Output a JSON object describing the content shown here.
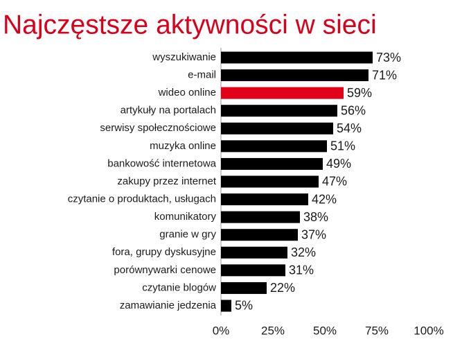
{
  "chart_data": {
    "type": "bar",
    "orientation": "horizontal",
    "title": "Najczęstsze aktywności w sieci",
    "categories": [
      "wyszukiwanie",
      "e-mail",
      "wideo online",
      "artykuły na portalach",
      "serwisy społecznościowe",
      "muzyka online",
      "bankowość internetowa",
      "zakupy przez internet",
      "czytanie o produktach, usługach",
      "komunikatory",
      "granie w gry",
      "fora, grupy dyskusyjne",
      "porównywarki cenowe",
      "czytanie blogów",
      "zamawianie jedzenia"
    ],
    "values": [
      73,
      71,
      59,
      56,
      54,
      51,
      49,
      47,
      42,
      38,
      37,
      32,
      31,
      22,
      5
    ],
    "value_labels": [
      "73%",
      "71%",
      "59%",
      "56%",
      "54%",
      "51%",
      "49%",
      "47%",
      "42%",
      "38%",
      "37%",
      "32%",
      "31%",
      "22%",
      "5%"
    ],
    "colors": [
      "#000000",
      "#000000",
      "#e2001a",
      "#000000",
      "#000000",
      "#000000",
      "#000000",
      "#000000",
      "#000000",
      "#000000",
      "#000000",
      "#000000",
      "#000000",
      "#000000",
      "#000000"
    ],
    "xlim": [
      0,
      100
    ],
    "xticks": [
      {
        "value": 0,
        "label": "0%"
      },
      {
        "value": 25,
        "label": "25%"
      },
      {
        "value": 50,
        "label": "50%"
      },
      {
        "value": 75,
        "label": "75%"
      },
      {
        "value": 100,
        "label": "100%"
      }
    ],
    "grid": false
  }
}
